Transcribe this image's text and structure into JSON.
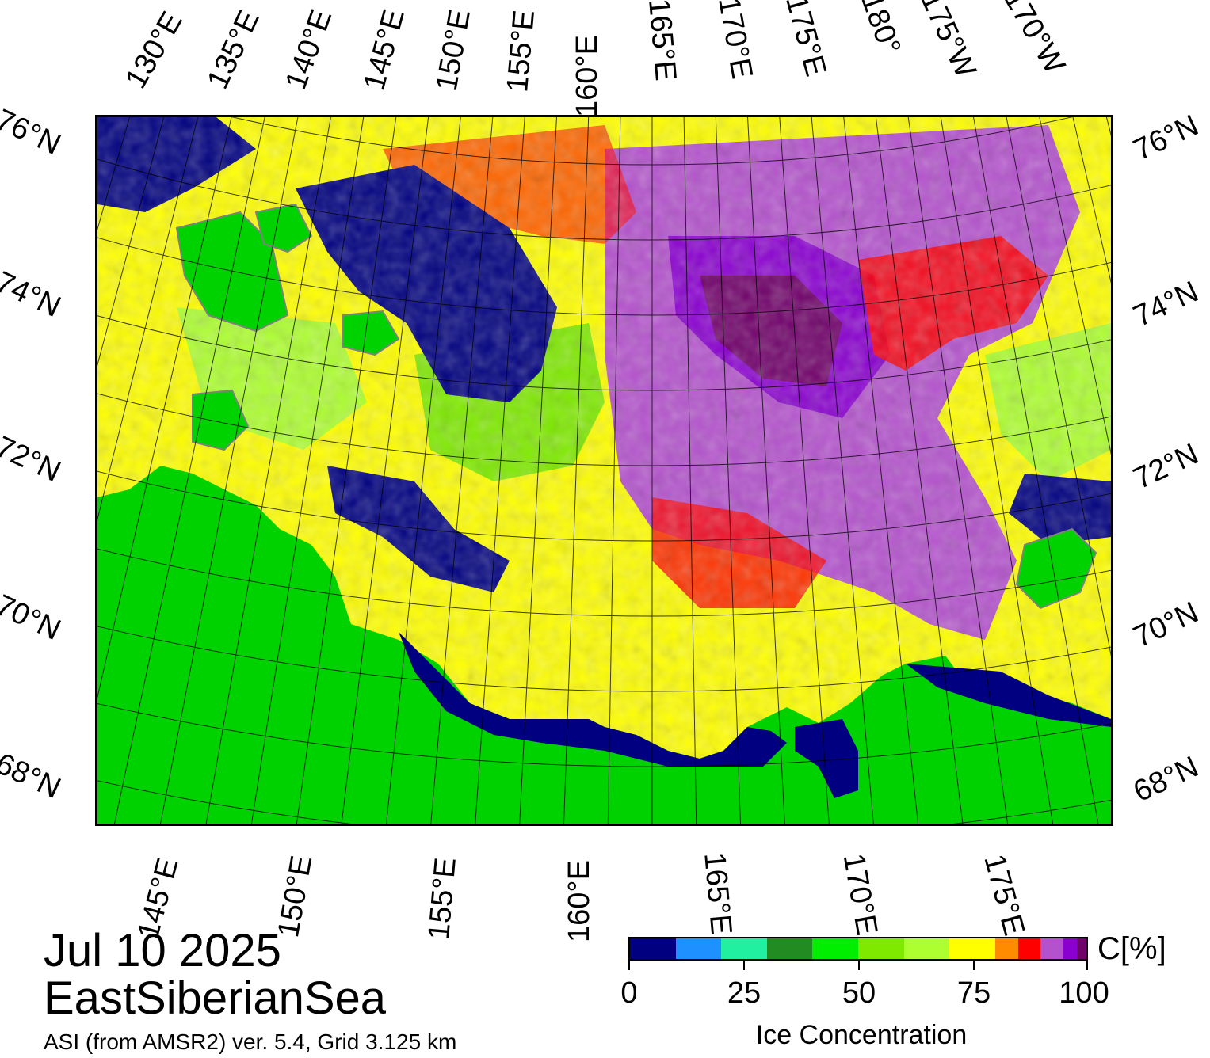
{
  "map": {
    "date": "Jul 10 2025",
    "region": "EastSiberianSea",
    "product": "ASI (from AMSR2) ver. 5.4,  Grid 3.125 km",
    "colors": {
      "land": "#00d200",
      "open_water": "#000080",
      "coast": "#808080"
    },
    "top_lon_labels": [
      "130°E",
      "135°E",
      "140°E",
      "145°E",
      "150°E",
      "155°E",
      "160°E",
      "165°E",
      "170°E",
      "175°E",
      "180°",
      "175°W",
      "170°W"
    ],
    "bottom_lon_labels": [
      "145°E",
      "150°E",
      "155°E",
      "160°E",
      "165°E",
      "170°E",
      "175°E"
    ],
    "left_lat_labels": [
      "76°N",
      "74°N",
      "72°N",
      "70°N",
      "68°N"
    ],
    "right_lat_labels": [
      "76°N",
      "74°N",
      "72°N",
      "70°N",
      "68°N"
    ]
  },
  "colorbar": {
    "title": "Ice Concentration",
    "unit": "C[%]",
    "tick_labels": [
      "0",
      "25",
      "50",
      "75",
      "100"
    ],
    "colors": [
      "#000080",
      "#1e90ff",
      "#20f0a0",
      "#228b22",
      "#00ee00",
      "#7fea00",
      "#adff2f",
      "#ffff00",
      "#ff8c00",
      "#ff0000",
      "#b452cd",
      "#8a00d0",
      "#70006a"
    ],
    "breaks": [
      0,
      10,
      20,
      30,
      40,
      50,
      60,
      70,
      80,
      85,
      90,
      95,
      98,
      100
    ]
  }
}
